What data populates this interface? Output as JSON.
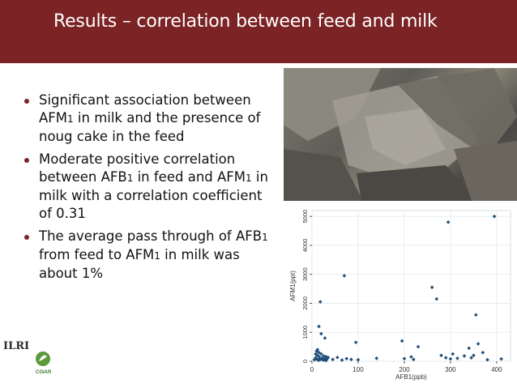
{
  "header": {
    "title": "Results – correlation between feed and milk"
  },
  "bullets": [
    {
      "parts": [
        {
          "t": "Significant association between AFM"
        },
        {
          "t": "1",
          "sub": true
        },
        {
          "t": " in milk and the presence of noug cake in the feed"
        }
      ]
    },
    {
      "parts": [
        {
          "t": "Moderate positive correlation between AFB"
        },
        {
          "t": "1",
          "sub": true
        },
        {
          "t": " in feed and AFM"
        },
        {
          "t": "1",
          "sub": true
        },
        {
          "t": " in milk with a correlation coefficient of 0.31"
        }
      ]
    },
    {
      "parts": [
        {
          "t": "The average pass through of AFB"
        },
        {
          "t": "1",
          "sub": true
        },
        {
          "t": " from feed to AFM"
        },
        {
          "t": "1",
          "sub": true
        },
        {
          "t": " in milk was about 1%"
        }
      ]
    }
  ],
  "logos": {
    "ilri": "ILRI",
    "cgiar": "CGIAR"
  },
  "colors": {
    "header": "#7b2325",
    "bullet": "#7b2325",
    "points": "#1f4e79"
  },
  "chart_data": {
    "type": "scatter",
    "xlabel": "AFB1(ppb)",
    "ylabel": "AFM1(ppt)",
    "xlim": [
      0,
      430
    ],
    "ylim": [
      0,
      5200
    ],
    "xticks": [
      0,
      100,
      200,
      300,
      400
    ],
    "yticks": [
      0,
      1000,
      2000,
      3000,
      4000,
      5000
    ],
    "grid": true,
    "points": [
      [
        5,
        50
      ],
      [
        8,
        120
      ],
      [
        10,
        80
      ],
      [
        12,
        200
      ],
      [
        14,
        30
      ],
      [
        15,
        300
      ],
      [
        16,
        150
      ],
      [
        18,
        60
      ],
      [
        20,
        250
      ],
      [
        22,
        100
      ],
      [
        24,
        40
      ],
      [
        25,
        180
      ],
      [
        28,
        90
      ],
      [
        30,
        20
      ],
      [
        32,
        60
      ],
      [
        35,
        130
      ],
      [
        8,
        250
      ],
      [
        10,
        350
      ],
      [
        12,
        400
      ],
      [
        15,
        60
      ],
      [
        18,
        2050
      ],
      [
        15,
        1200
      ],
      [
        20,
        950
      ],
      [
        28,
        800
      ],
      [
        30,
        160
      ],
      [
        45,
        60
      ],
      [
        55,
        130
      ],
      [
        65,
        40
      ],
      [
        70,
        2950
      ],
      [
        75,
        90
      ],
      [
        85,
        60
      ],
      [
        95,
        650
      ],
      [
        100,
        50
      ],
      [
        140,
        100
      ],
      [
        195,
        700
      ],
      [
        200,
        90
      ],
      [
        215,
        150
      ],
      [
        220,
        60
      ],
      [
        230,
        500
      ],
      [
        260,
        2550
      ],
      [
        270,
        2150
      ],
      [
        280,
        200
      ],
      [
        290,
        120
      ],
      [
        295,
        4800
      ],
      [
        300,
        80
      ],
      [
        305,
        250
      ],
      [
        315,
        100
      ],
      [
        330,
        180
      ],
      [
        340,
        450
      ],
      [
        345,
        120
      ],
      [
        350,
        200
      ],
      [
        355,
        1600
      ],
      [
        360,
        600
      ],
      [
        370,
        300
      ],
      [
        380,
        50
      ],
      [
        395,
        5000
      ],
      [
        410,
        80
      ]
    ]
  }
}
